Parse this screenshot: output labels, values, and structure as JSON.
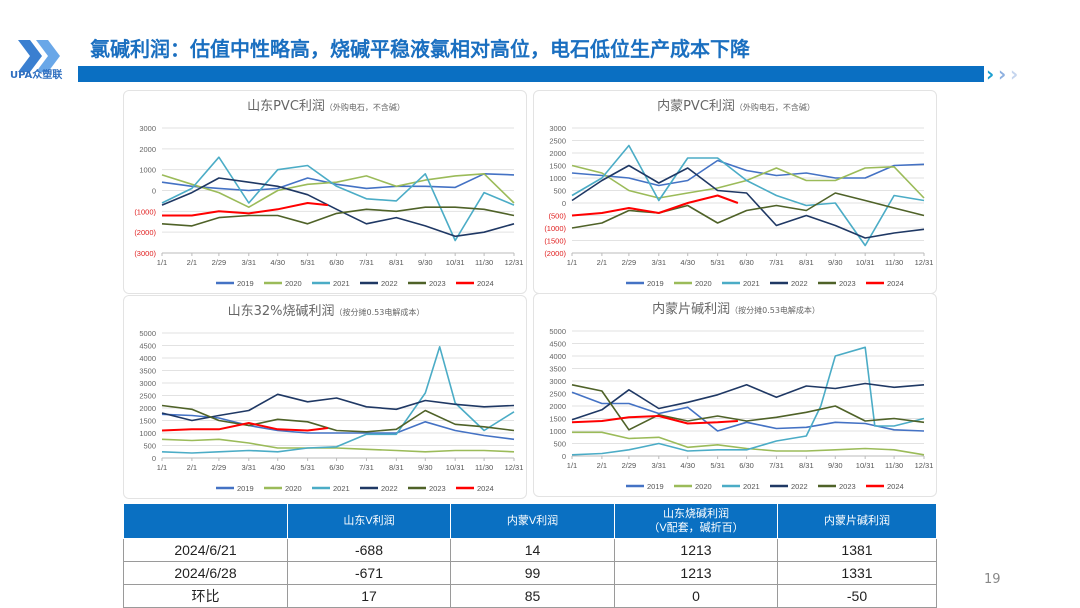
{
  "header": {
    "title": "氯碱利润：估值中性略高，烧碱平稳液氯相对高位，电石低位生产成本下降",
    "logo_text": "UPA众塑联"
  },
  "page_number": "19",
  "series_colors": {
    "2019": "#4472c4",
    "2020": "#9bbb59",
    "2021": "#4bacc6",
    "2022": "#1f3864",
    "2023": "#4f6228",
    "2024": "#ff0000"
  },
  "chart_data": [
    {
      "type": "line",
      "title": "山东PVC利润",
      "subtitle": "（外购电石，不含碱）",
      "ylim": [
        -3000,
        3000
      ],
      "yticks": [
        3000,
        2000,
        1000,
        0,
        -1000,
        -2000,
        -3000
      ],
      "ytick_labels": [
        "3000",
        "2000",
        "1000",
        "0",
        "(1000)",
        "(2000)",
        "(3000)"
      ],
      "xticks": [
        "1/1",
        "2/1",
        "2/29",
        "3/31",
        "4/30",
        "5/31",
        "6/30",
        "7/31",
        "8/31",
        "9/30",
        "10/31",
        "11/30",
        "12/31"
      ],
      "legend": "bottom",
      "grid": true,
      "series": [
        {
          "name": "2019",
          "x": [
            "1/1",
            "2/1",
            "2/29",
            "3/31",
            "4/30",
            "5/31",
            "6/30",
            "7/31",
            "8/31",
            "9/30",
            "10/31",
            "11/30",
            "12/31"
          ],
          "values": [
            400,
            200,
            100,
            0,
            100,
            600,
            300,
            100,
            200,
            200,
            150,
            800,
            750
          ]
        },
        {
          "name": "2020",
          "x": [
            "1/1",
            "2/1",
            "2/29",
            "3/31",
            "4/30",
            "5/31",
            "6/30",
            "7/31",
            "8/31",
            "9/30",
            "10/31",
            "11/30",
            "12/31"
          ],
          "values": [
            750,
            300,
            -100,
            -800,
            0,
            300,
            400,
            700,
            200,
            500,
            700,
            800,
            -600
          ]
        },
        {
          "name": "2021",
          "x": [
            "1/1",
            "2/1",
            "2/29",
            "3/31",
            "4/30",
            "5/31",
            "6/30",
            "7/31",
            "8/31",
            "9/30",
            "10/31",
            "11/30",
            "12/31"
          ],
          "values": [
            -600,
            100,
            1600,
            -600,
            1000,
            1200,
            200,
            -400,
            -500,
            800,
            -2400,
            -100,
            -700
          ]
        },
        {
          "name": "2022",
          "x": [
            "1/1",
            "2/1",
            "2/29",
            "3/31",
            "4/30",
            "5/31",
            "6/30",
            "7/31",
            "8/31",
            "9/30",
            "10/31",
            "11/30",
            "12/31"
          ],
          "values": [
            -700,
            -100,
            600,
            400,
            200,
            -200,
            -900,
            -1600,
            -1300,
            -1700,
            -2200,
            -2000,
            -1600
          ]
        },
        {
          "name": "2023",
          "x": [
            "1/1",
            "2/1",
            "2/29",
            "3/31",
            "4/30",
            "5/31",
            "6/30",
            "7/31",
            "8/31",
            "9/30",
            "10/31",
            "11/30",
            "12/31"
          ],
          "values": [
            -1600,
            -1700,
            -1300,
            -1200,
            -1200,
            -1600,
            -1100,
            -900,
            -1000,
            -800,
            -800,
            -900,
            -1200
          ]
        },
        {
          "name": "2024",
          "x": [
            "1/1",
            "2/1",
            "2/29",
            "3/31",
            "4/30",
            "5/31",
            "6/21"
          ],
          "values": [
            -1200,
            -1200,
            -1000,
            -1100,
            -900,
            -600,
            -700
          ]
        }
      ]
    },
    {
      "type": "line",
      "title": "内蒙PVC利润",
      "subtitle": "（外购电石，不含碱）",
      "ylim": [
        -2000,
        3000
      ],
      "yticks": [
        3000,
        2500,
        2000,
        1500,
        1000,
        500,
        0,
        -500,
        -1000,
        -1500,
        -2000
      ],
      "ytick_labels": [
        "3000",
        "2500",
        "2000",
        "1500",
        "1000",
        "500",
        "0",
        "(500)",
        "(1000)",
        "(1500)",
        "(2000)"
      ],
      "xticks": [
        "1/1",
        "2/1",
        "2/29",
        "3/31",
        "4/30",
        "5/31",
        "6/30",
        "7/31",
        "8/31",
        "9/30",
        "10/31",
        "11/30",
        "12/31"
      ],
      "legend": "bottom",
      "grid": true,
      "series": [
        {
          "name": "2019",
          "x": [
            "1/1",
            "2/1",
            "2/29",
            "3/31",
            "4/30",
            "5/31",
            "6/30",
            "7/31",
            "8/31",
            "9/30",
            "10/31",
            "11/30",
            "12/31"
          ],
          "values": [
            1200,
            1100,
            1000,
            700,
            900,
            1700,
            1300,
            1100,
            1200,
            1000,
            1000,
            1500,
            1550
          ]
        },
        {
          "name": "2020",
          "x": [
            "1/1",
            "2/1",
            "2/29",
            "3/31",
            "4/30",
            "5/31",
            "6/30",
            "7/31",
            "8/31",
            "9/30",
            "10/31",
            "11/30",
            "12/31"
          ],
          "values": [
            1500,
            1200,
            500,
            200,
            400,
            600,
            900,
            1400,
            900,
            900,
            1400,
            1450,
            200
          ]
        },
        {
          "name": "2021",
          "x": [
            "1/1",
            "2/1",
            "2/29",
            "3/31",
            "4/30",
            "5/31",
            "6/30",
            "7/31",
            "8/31",
            "9/30",
            "10/31",
            "11/30",
            "12/31"
          ],
          "values": [
            300,
            1000,
            2300,
            100,
            1800,
            1800,
            900,
            300,
            -100,
            0,
            -1700,
            300,
            100
          ]
        },
        {
          "name": "2022",
          "x": [
            "1/1",
            "2/1",
            "2/29",
            "3/31",
            "4/30",
            "5/31",
            "6/30",
            "7/31",
            "8/31",
            "9/30",
            "10/31",
            "11/30",
            "12/31"
          ],
          "values": [
            100,
            900,
            1500,
            800,
            1400,
            500,
            400,
            -900,
            -500,
            -900,
            -1400,
            -1200,
            -1050
          ]
        },
        {
          "name": "2023",
          "x": [
            "1/1",
            "2/1",
            "2/29",
            "3/31",
            "4/30",
            "5/31",
            "6/30",
            "7/31",
            "8/31",
            "9/30",
            "10/31",
            "11/30",
            "12/31"
          ],
          "values": [
            -1000,
            -800,
            -300,
            -400,
            -100,
            -800,
            -300,
            -100,
            -300,
            400,
            100,
            -200,
            -500
          ]
        },
        {
          "name": "2024",
          "x": [
            "1/1",
            "2/1",
            "2/29",
            "3/31",
            "4/30",
            "5/31",
            "6/21"
          ],
          "values": [
            -500,
            -400,
            -200,
            -400,
            0,
            300,
            0
          ]
        }
      ]
    },
    {
      "type": "line",
      "title": "山东32%烧碱利润",
      "subtitle": "（按分摊0.53电解成本）",
      "ylim": [
        0,
        5000
      ],
      "yticks": [
        5000,
        4500,
        4000,
        3500,
        3000,
        2500,
        2000,
        1500,
        1000,
        500,
        0
      ],
      "ytick_labels": [
        "5000",
        "4500",
        "4000",
        "3500",
        "3000",
        "2500",
        "2000",
        "1500",
        "1000",
        "500",
        "0"
      ],
      "xticks": [
        "1/1",
        "2/1",
        "2/29",
        "3/31",
        "4/30",
        "5/31",
        "6/30",
        "7/31",
        "8/31",
        "9/30",
        "10/31",
        "11/30",
        "12/31"
      ],
      "legend": "bottom",
      "grid": true,
      "series": [
        {
          "name": "2019",
          "x": [
            "1/1",
            "2/1",
            "2/29",
            "3/31",
            "4/30",
            "5/31",
            "6/30",
            "7/31",
            "8/31",
            "9/30",
            "10/31",
            "11/30",
            "12/31"
          ],
          "values": [
            1750,
            1700,
            1600,
            1300,
            1100,
            1000,
            1000,
            1000,
            1000,
            1450,
            1100,
            900,
            750
          ]
        },
        {
          "name": "2020",
          "x": [
            "1/1",
            "2/1",
            "2/29",
            "3/31",
            "4/30",
            "5/31",
            "6/30",
            "7/31",
            "8/31",
            "9/30",
            "10/31",
            "11/30",
            "12/31"
          ],
          "values": [
            750,
            700,
            750,
            600,
            400,
            400,
            400,
            350,
            300,
            250,
            300,
            300,
            250
          ]
        },
        {
          "name": "2021",
          "x": [
            "1/1",
            "2/1",
            "2/29",
            "3/31",
            "4/30",
            "5/31",
            "6/30",
            "7/31",
            "8/31",
            "9/30",
            "10/15",
            "10/31",
            "11/30",
            "12/31"
          ],
          "values": [
            250,
            200,
            250,
            300,
            250,
            400,
            450,
            950,
            950,
            2600,
            4450,
            2200,
            1100,
            1850
          ]
        },
        {
          "name": "2022",
          "x": [
            "1/1",
            "2/1",
            "2/29",
            "3/31",
            "4/30",
            "5/31",
            "6/30",
            "7/31",
            "8/31",
            "9/30",
            "10/31",
            "11/30",
            "12/31"
          ],
          "values": [
            1800,
            1500,
            1700,
            1900,
            2550,
            2250,
            2400,
            2050,
            1950,
            2300,
            2150,
            2050,
            2100
          ]
        },
        {
          "name": "2023",
          "x": [
            "1/1",
            "2/1",
            "2/29",
            "3/31",
            "4/30",
            "5/31",
            "6/30",
            "7/31",
            "8/31",
            "9/30",
            "10/31",
            "11/30",
            "12/31"
          ],
          "values": [
            2100,
            1950,
            1500,
            1300,
            1550,
            1450,
            1100,
            1050,
            1150,
            1900,
            1350,
            1250,
            1100
          ]
        },
        {
          "name": "2024",
          "x": [
            "1/1",
            "2/1",
            "2/29",
            "3/31",
            "4/30",
            "5/31",
            "6/21"
          ],
          "values": [
            1100,
            1150,
            1150,
            1400,
            1150,
            1100,
            1200
          ]
        }
      ]
    },
    {
      "type": "line",
      "title": "内蒙片碱利润",
      "subtitle": "（按分摊0.53电解成本）",
      "ylim": [
        0,
        5000
      ],
      "yticks": [
        5000,
        4500,
        4000,
        3500,
        3000,
        2500,
        2000,
        1500,
        1000,
        500,
        0
      ],
      "ytick_labels": [
        "5000",
        "4500",
        "4000",
        "3500",
        "3000",
        "2500",
        "2000",
        "1500",
        "1000",
        "500",
        "0"
      ],
      "xticks": [
        "1/1",
        "2/1",
        "2/29",
        "3/31",
        "4/30",
        "5/31",
        "6/30",
        "7/31",
        "8/31",
        "9/30",
        "10/31",
        "11/30",
        "12/31"
      ],
      "legend": "bottom",
      "grid": true,
      "series": [
        {
          "name": "2019",
          "x": [
            "1/1",
            "2/1",
            "2/29",
            "3/31",
            "4/30",
            "5/31",
            "6/30",
            "7/31",
            "8/31",
            "9/30",
            "10/31",
            "11/30",
            "12/31"
          ],
          "values": [
            2550,
            2100,
            2100,
            1700,
            1950,
            1000,
            1350,
            1100,
            1150,
            1350,
            1300,
            1050,
            1000
          ]
        },
        {
          "name": "2020",
          "x": [
            "1/1",
            "2/1",
            "2/29",
            "3/31",
            "4/30",
            "5/31",
            "6/30",
            "7/31",
            "8/31",
            "9/30",
            "10/31",
            "11/30",
            "12/31"
          ],
          "values": [
            950,
            950,
            700,
            750,
            350,
            450,
            300,
            200,
            200,
            250,
            300,
            250,
            50
          ]
        },
        {
          "name": "2021",
          "x": [
            "1/1",
            "2/1",
            "2/29",
            "3/31",
            "4/30",
            "5/31",
            "6/30",
            "7/31",
            "8/31",
            "9/15",
            "9/30",
            "10/31",
            "11/10",
            "11/30",
            "12/31"
          ],
          "values": [
            50,
            100,
            250,
            500,
            200,
            250,
            250,
            600,
            800,
            2000,
            4000,
            4350,
            1200,
            1200,
            1500
          ]
        },
        {
          "name": "2022",
          "x": [
            "1/1",
            "2/1",
            "2/29",
            "3/31",
            "4/30",
            "5/31",
            "6/30",
            "7/31",
            "8/31",
            "9/30",
            "10/31",
            "11/30",
            "12/31"
          ],
          "values": [
            1450,
            1850,
            2650,
            1900,
            2150,
            2450,
            2850,
            2350,
            2800,
            2700,
            2900,
            2750,
            2850
          ]
        },
        {
          "name": "2023",
          "x": [
            "1/1",
            "2/1",
            "2/29",
            "3/31",
            "4/30",
            "5/31",
            "6/30",
            "7/31",
            "8/31",
            "9/30",
            "10/31",
            "11/30",
            "12/31"
          ],
          "values": [
            2850,
            2600,
            1050,
            1650,
            1400,
            1600,
            1400,
            1550,
            1750,
            2000,
            1400,
            1500,
            1350
          ]
        },
        {
          "name": "2024",
          "x": [
            "1/1",
            "2/1",
            "2/29",
            "3/31",
            "4/30",
            "5/31",
            "6/21"
          ],
          "values": [
            1350,
            1400,
            1550,
            1600,
            1300,
            1350,
            1400
          ]
        }
      ]
    }
  ],
  "table": {
    "headers": [
      "",
      "山东V利润",
      "内蒙V利润",
      "山东烧碱利润\n（V配套，碱折百）",
      "内蒙片碱利润"
    ],
    "rows": [
      [
        "2024/6/21",
        "-688",
        "14",
        "1213",
        "1381"
      ],
      [
        "2024/6/28",
        "-671",
        "99",
        "1213",
        "1331"
      ],
      [
        "环比",
        "17",
        "85",
        "0",
        "-50"
      ]
    ]
  }
}
